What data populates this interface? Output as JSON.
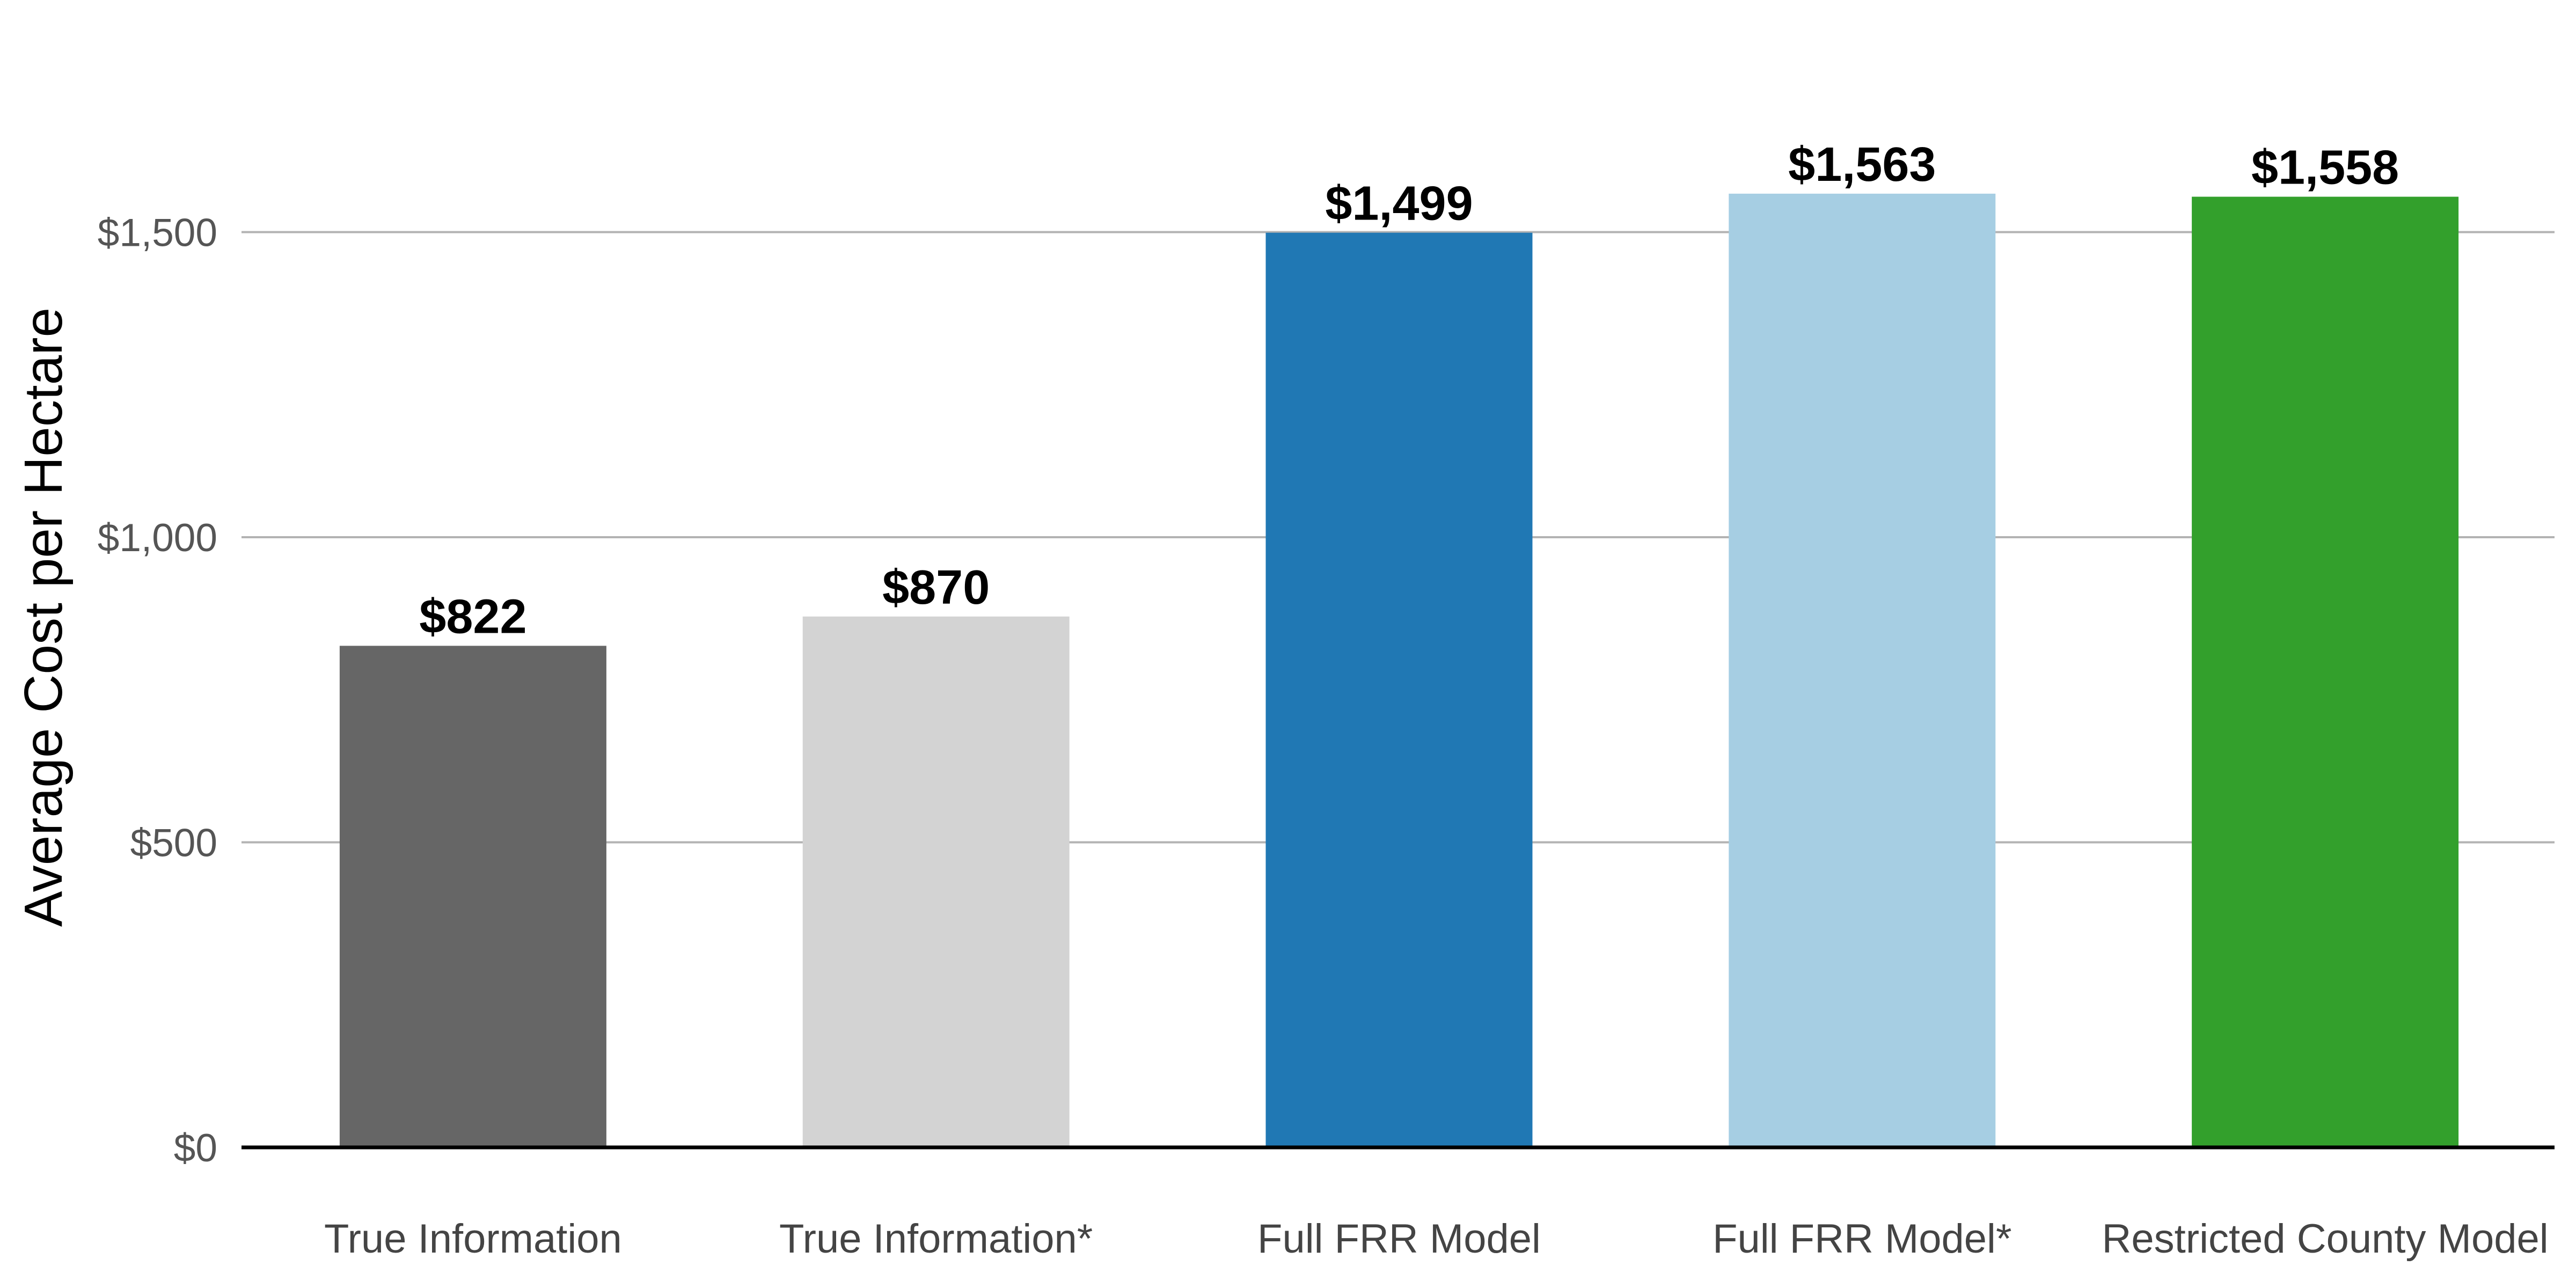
{
  "chart_data": {
    "type": "bar",
    "title": "",
    "xlabel": "",
    "ylabel": "Average Cost per Hectare",
    "categories": [
      "True Information",
      "True Information*",
      "Full FRR Model",
      "Full FRR Model*",
      "Restricted County Model"
    ],
    "values": [
      822,
      870,
      1499,
      1563,
      1558
    ],
    "data_labels": [
      "$822",
      "$870",
      "$1,499",
      "$1,563",
      "$1,558"
    ],
    "colors": [
      "#666666",
      "#d3d3d3",
      "#2078b4",
      "#a6cee3",
      "#33a02c"
    ],
    "ylim": [
      0,
      1750
    ],
    "yticks": [
      0,
      500,
      1000,
      1500
    ],
    "ytick_labels": [
      "$0",
      "$500",
      "$1,000",
      "$1,500"
    ],
    "grid": true,
    "legend": "none"
  }
}
